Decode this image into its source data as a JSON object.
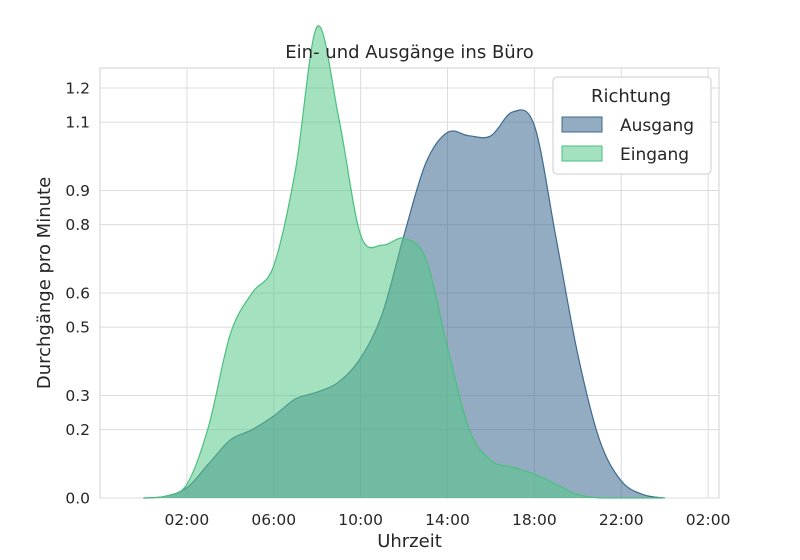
{
  "chart_data": {
    "type": "area",
    "title": "Ein- und Ausgänge ins Büro",
    "xlabel": "Uhrzeit",
    "ylabel": "Durchgänge pro Minute",
    "x_unit": "hours",
    "xlim": [
      -2,
      26.5
    ],
    "ylim": [
      0,
      1.2
    ],
    "x_ticks": [
      {
        "value": 2,
        "label": "02:00"
      },
      {
        "value": 6,
        "label": "06:00"
      },
      {
        "value": 10,
        "label": "10:00"
      },
      {
        "value": 14,
        "label": "14:00"
      },
      {
        "value": 18,
        "label": "18:00"
      },
      {
        "value": 22,
        "label": "22:00"
      },
      {
        "value": 26,
        "label": "02:00"
      }
    ],
    "y_ticks": [
      {
        "value": 0.0,
        "label": "0.0"
      },
      {
        "value": 0.2,
        "label": "0.2"
      },
      {
        "value": 0.3,
        "label": "0.3"
      },
      {
        "value": 0.5,
        "label": "0.5"
      },
      {
        "value": 0.6,
        "label": "0.6"
      },
      {
        "value": 0.8,
        "label": "0.8"
      },
      {
        "value": 0.9,
        "label": "0.9"
      },
      {
        "value": 1.1,
        "label": "1.1"
      },
      {
        "value": 1.2,
        "label": "1.2"
      }
    ],
    "grid": true,
    "legend": {
      "title": "Richtung",
      "position": "top-right"
    },
    "series": [
      {
        "name": "Ausgang",
        "color": "#3e6a8e",
        "fill_color": "#3b6790",
        "x": [
          0,
          1,
          2,
          3,
          4,
          5,
          6,
          7,
          8,
          9,
          10,
          11,
          12,
          13,
          14,
          15,
          16,
          17,
          18,
          19,
          20,
          21,
          22,
          23,
          24
        ],
        "values": [
          0.0,
          0.005,
          0.03,
          0.1,
          0.17,
          0.2,
          0.24,
          0.29,
          0.31,
          0.34,
          0.41,
          0.54,
          0.77,
          0.98,
          1.07,
          1.06,
          1.06,
          1.13,
          1.09,
          0.76,
          0.42,
          0.17,
          0.05,
          0.01,
          0.0
        ]
      },
      {
        "name": "Eingang",
        "color": "#4bbf7f",
        "fill_color": "#58c98b",
        "x": [
          0,
          1,
          2,
          3,
          4,
          5,
          6,
          7,
          8,
          9,
          10,
          11,
          12,
          13,
          14,
          15,
          16,
          17,
          18,
          19,
          20,
          21,
          22,
          23,
          24
        ],
        "values": [
          0.0,
          0.005,
          0.04,
          0.21,
          0.48,
          0.6,
          0.68,
          0.96,
          1.38,
          1.11,
          0.77,
          0.74,
          0.76,
          0.7,
          0.44,
          0.2,
          0.11,
          0.09,
          0.07,
          0.04,
          0.01,
          0.0,
          0.0,
          0.0,
          0.0
        ]
      }
    ]
  }
}
